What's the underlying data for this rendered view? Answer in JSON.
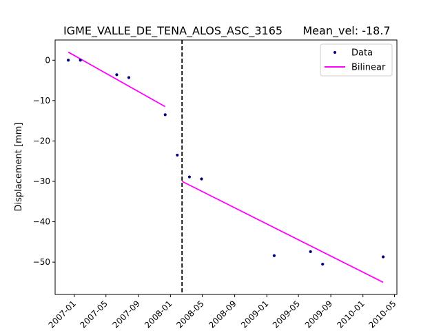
{
  "chart_data": {
    "type": "scatter",
    "title_left": "IGME_VALLE_DE_TENA_ALOS_ASC_3165",
    "title_right": "Mean_vel: -18.7",
    "xlabel": "",
    "ylabel": "Displacement [mm]",
    "xlim": [
      "2006-10-20",
      "2010-05-10"
    ],
    "ylim": [
      -58,
      5
    ],
    "x_ticks": [
      "2007-01",
      "2007-05",
      "2007-09",
      "2008-01",
      "2008-05",
      "2008-09",
      "2009-01",
      "2009-05",
      "2009-09",
      "2010-01",
      "2010-05"
    ],
    "y_ticks": [
      0,
      -10,
      -20,
      -30,
      -40,
      -50
    ],
    "grid": false,
    "legend_position": "top-right",
    "legend": [
      "Data",
      "Bilinear"
    ],
    "breakpoint": "2008-02-14",
    "series": [
      {
        "name": "Data",
        "kind": "points",
        "color": "#00007f",
        "points": [
          {
            "x": "2006-12-09",
            "y": 0.0
          },
          {
            "x": "2007-01-24",
            "y": 0.0
          },
          {
            "x": "2007-06-11",
            "y": -3.6
          },
          {
            "x": "2007-07-27",
            "y": -4.3
          },
          {
            "x": "2007-12-12",
            "y": -13.5
          },
          {
            "x": "2008-01-27",
            "y": -23.5
          },
          {
            "x": "2008-03-13",
            "y": -28.9
          },
          {
            "x": "2008-04-28",
            "y": -29.4
          },
          {
            "x": "2009-01-29",
            "y": -48.4
          },
          {
            "x": "2009-06-16",
            "y": -47.4
          },
          {
            "x": "2009-08-01",
            "y": -50.5
          },
          {
            "x": "2010-03-19",
            "y": -48.7
          }
        ]
      },
      {
        "name": "Bilinear",
        "kind": "segments",
        "color": "#ff00ff",
        "segments": [
          [
            {
              "x": "2006-12-09",
              "y": 2.0
            },
            {
              "x": "2007-12-12",
              "y": -11.5
            }
          ],
          [
            {
              "x": "2008-02-14",
              "y": -30.0
            },
            {
              "x": "2010-03-19",
              "y": -55.0
            }
          ]
        ]
      }
    ],
    "colors": {
      "axis": "#000000",
      "breakpoint": "#000000",
      "legend_border": "#cccccc"
    }
  }
}
